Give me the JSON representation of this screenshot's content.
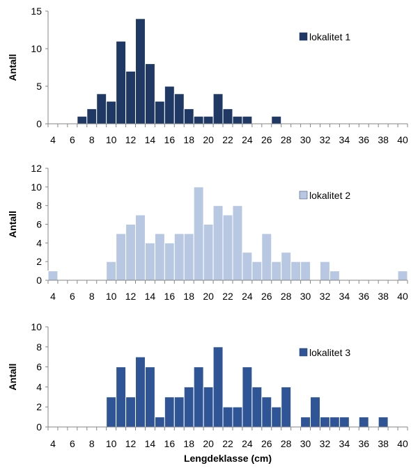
{
  "chart_data": [
    {
      "type": "bar",
      "ylabel": "Antall",
      "xlabel": "",
      "ylim": [
        0,
        15
      ],
      "yticks": [
        0,
        5,
        10,
        15
      ],
      "xticks": [
        "4",
        "6",
        "8",
        "10",
        "12",
        "14",
        "16",
        "18",
        "20",
        "22",
        "24",
        "26",
        "28",
        "30",
        "32",
        "34",
        "36",
        "38",
        "40"
      ],
      "legend": "top-right",
      "legend_label": "lokalitet 1",
      "color": "#1f3864",
      "x": [
        4,
        5,
        6,
        7,
        8,
        9,
        10,
        11,
        12,
        13,
        14,
        15,
        16,
        17,
        18,
        19,
        20,
        21,
        22,
        23,
        24,
        25,
        26,
        27,
        28,
        29,
        30,
        31,
        32,
        33,
        34,
        35,
        36,
        37,
        38,
        39,
        40
      ],
      "values": [
        0,
        0,
        0,
        1,
        2,
        4,
        3,
        11,
        7,
        14,
        8,
        3,
        5,
        4,
        2,
        1,
        1,
        4,
        2,
        1,
        1,
        0,
        0,
        1,
        0,
        0,
        0,
        0,
        0,
        0,
        0,
        0,
        0,
        0,
        0,
        0,
        0
      ]
    },
    {
      "type": "bar",
      "ylabel": "Antall",
      "xlabel": "",
      "ylim": [
        0,
        12
      ],
      "yticks": [
        0,
        2,
        4,
        6,
        8,
        10,
        12
      ],
      "xticks": [
        "4",
        "6",
        "8",
        "10",
        "12",
        "14",
        "16",
        "18",
        "20",
        "22",
        "24",
        "26",
        "28",
        "30",
        "32",
        "34",
        "36",
        "38",
        "40"
      ],
      "legend": "top-right",
      "legend_label": "lokalitet 2",
      "color": "#b8c8e2",
      "x": [
        4,
        5,
        6,
        7,
        8,
        9,
        10,
        11,
        12,
        13,
        14,
        15,
        16,
        17,
        18,
        19,
        20,
        21,
        22,
        23,
        24,
        25,
        26,
        27,
        28,
        29,
        30,
        31,
        32,
        33,
        34,
        35,
        36,
        37,
        38,
        39,
        40
      ],
      "values": [
        1,
        0,
        0,
        0,
        0,
        0,
        2,
        5,
        6,
        7,
        4,
        5,
        4,
        5,
        5,
        10,
        6,
        8,
        7,
        8,
        3,
        2,
        5,
        2,
        3,
        2,
        2,
        0,
        2,
        1,
        0,
        0,
        0,
        0,
        0,
        0,
        1
      ]
    },
    {
      "type": "bar",
      "ylabel": "Antall",
      "xlabel": "Lengdeklasse (cm)",
      "ylim": [
        0,
        10
      ],
      "yticks": [
        0,
        2,
        4,
        6,
        8,
        10
      ],
      "xticks": [
        "4",
        "6",
        "8",
        "10",
        "12",
        "14",
        "16",
        "18",
        "20",
        "22",
        "24",
        "26",
        "28",
        "30",
        "32",
        "34",
        "36",
        "38",
        "40"
      ],
      "legend": "top-right",
      "legend_label": "lokalitet 3",
      "color": "#2f5597",
      "x": [
        4,
        5,
        6,
        7,
        8,
        9,
        10,
        11,
        12,
        13,
        14,
        15,
        16,
        17,
        18,
        19,
        20,
        21,
        22,
        23,
        24,
        25,
        26,
        27,
        28,
        29,
        30,
        31,
        32,
        33,
        34,
        35,
        36,
        37,
        38,
        39,
        40
      ],
      "values": [
        0,
        0,
        0,
        0,
        0,
        0,
        3,
        6,
        3,
        7,
        6,
        1,
        3,
        3,
        4,
        6,
        4,
        8,
        2,
        2,
        6,
        4,
        3,
        2,
        4,
        0,
        1,
        3,
        1,
        1,
        1,
        0,
        1,
        0,
        1,
        0,
        0
      ]
    }
  ]
}
